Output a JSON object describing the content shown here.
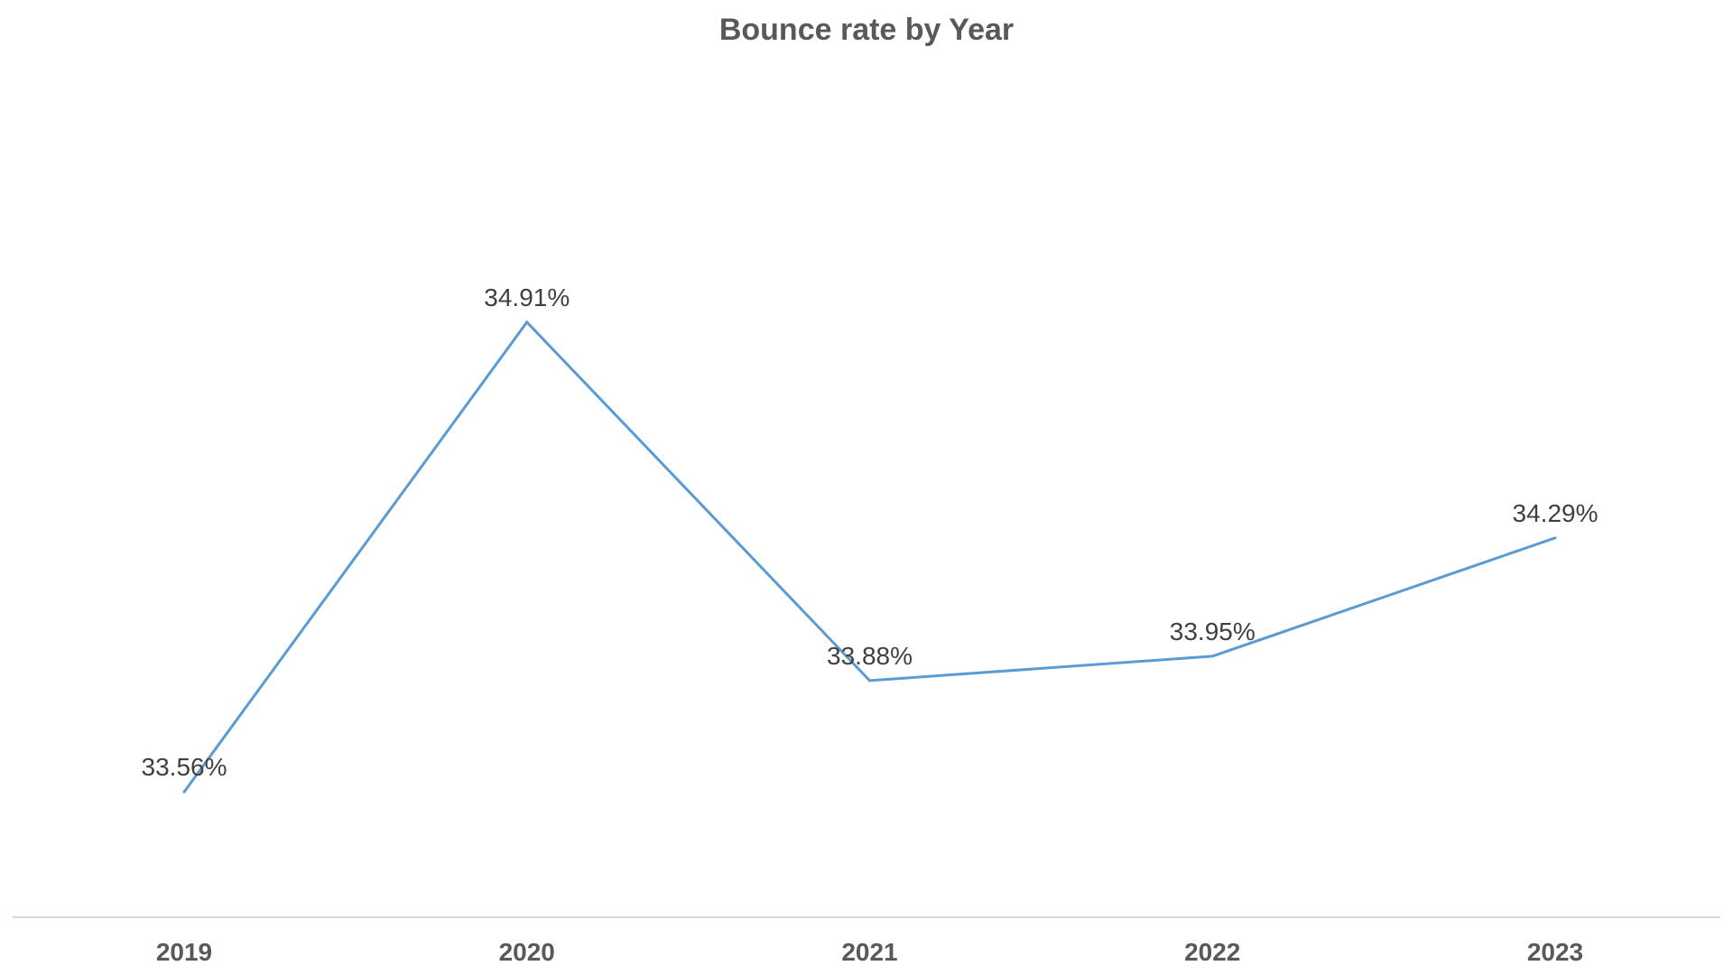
{
  "chart_data": {
    "type": "line",
    "title": "Bounce rate by Year",
    "xlabel": "",
    "ylabel": "",
    "categories": [
      "2019",
      "2020",
      "2021",
      "2022",
      "2023"
    ],
    "series": [
      {
        "values": [
          33.56,
          34.91,
          33.88,
          33.95,
          34.29
        ],
        "labels": [
          "33.56%",
          "34.91%",
          "33.88%",
          "33.95%",
          "34.29%"
        ],
        "color": "#5b9bd5"
      }
    ],
    "ylim": [
      33.2,
      35.4
    ],
    "grid": false,
    "legend": "none",
    "axis_color": "#d9d9d9"
  }
}
